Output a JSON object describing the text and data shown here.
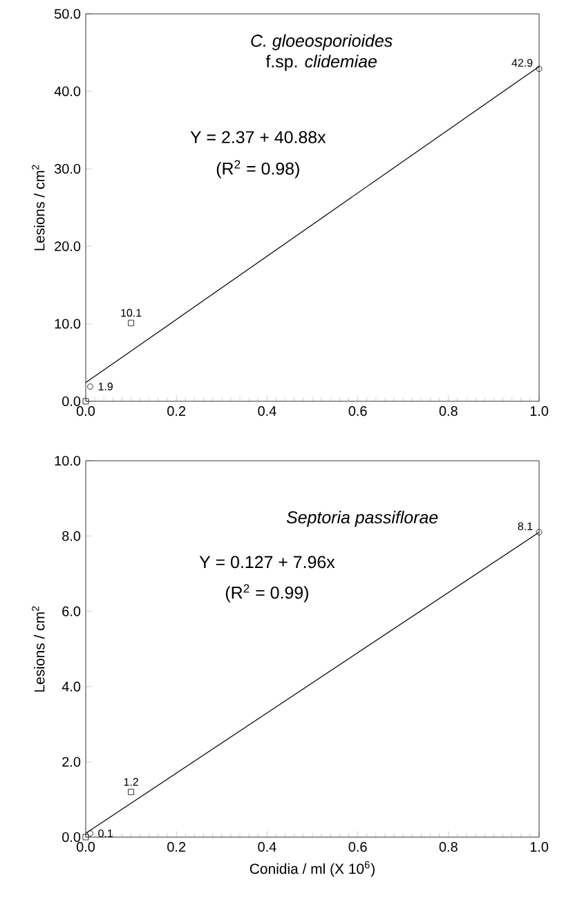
{
  "chart_data": [
    {
      "type": "scatter",
      "title": "C. gloeosporioides",
      "subtitle": "f.sp. *clidemiae*",
      "ylabel": "Lesions / cm$^{2}$",
      "annotations": [
        "Y = 2.37 + 40.88x",
        "(R$^{2}$ = 0.98)"
      ],
      "xlim": [
        0,
        1
      ],
      "ylim": [
        0,
        50
      ],
      "xticks": [
        {
          "value": 0,
          "label": "0.0"
        },
        {
          "value": 0.2,
          "label": "0.2"
        },
        {
          "value": 0.4,
          "label": "0.4"
        },
        {
          "value": 0.6,
          "label": "0.6"
        },
        {
          "value": 0.8,
          "label": "0.8"
        },
        {
          "value": 1,
          "label": "1.0"
        }
      ],
      "yticks": [
        {
          "value": 0,
          "label": "0.0"
        },
        {
          "value": 10,
          "label": "10.0"
        },
        {
          "value": 20,
          "label": "20.0"
        },
        {
          "value": 30,
          "label": "30.0"
        },
        {
          "value": 40,
          "label": "40.0"
        },
        {
          "value": 50,
          "label": "50.0"
        }
      ],
      "series": [
        {
          "type": "scatter",
          "marker": "square",
          "color": "#000000",
          "x": [
            0,
            0.1
          ],
          "values": [
            0,
            10.1
          ],
          "value_labels": [
            null,
            "10.1"
          ]
        },
        {
          "type": "scatter",
          "marker": "circle",
          "color": "#000000",
          "x": [
            0.01,
            1
          ],
          "values": [
            1.9,
            42.9
          ],
          "value_labels": [
            "1.9",
            "42.9"
          ]
        },
        {
          "type": "line",
          "marker": "none",
          "color": "#000000",
          "x": [
            0,
            1
          ],
          "values": [
            2.4,
            43.2
          ]
        }
      ]
    },
    {
      "type": "scatter",
      "title": "Septoria passiflorae",
      "xlabel": "Conidia / ml (X 10$^{6}$)",
      "ylabel": "Lesions / cm$^{2}$",
      "annotations": [
        "Y = 0.127 + 7.96x",
        "(R$^{2}$ = 0.99)"
      ],
      "xlim": [
        0,
        1
      ],
      "ylim": [
        0,
        10
      ],
      "xticks": [
        {
          "value": 0,
          "label": "0.0"
        },
        {
          "value": 0.2,
          "label": "0.2"
        },
        {
          "value": 0.4,
          "label": "0.4"
        },
        {
          "value": 0.6,
          "label": "0.6"
        },
        {
          "value": 0.8,
          "label": "0.8"
        },
        {
          "value": 1,
          "label": "1.0"
        }
      ],
      "yticks": [
        {
          "value": 0,
          "label": "0.0"
        },
        {
          "value": 2,
          "label": "2.0"
        },
        {
          "value": 4,
          "label": "4.0"
        },
        {
          "value": 6,
          "label": "6.0"
        },
        {
          "value": 8,
          "label": "8.0"
        },
        {
          "value": 10,
          "label": "10.0"
        }
      ],
      "series": [
        {
          "type": "scatter",
          "marker": "square",
          "color": "#000000",
          "x": [
            0,
            0.1
          ],
          "values": [
            0,
            1.2
          ],
          "value_labels": [
            null,
            "1.2"
          ]
        },
        {
          "type": "scatter",
          "marker": "circle",
          "color": "#000000",
          "x": [
            0.01,
            1
          ],
          "values": [
            0.1,
            8.1
          ],
          "value_labels": [
            "0.1",
            "8.1"
          ]
        },
        {
          "type": "line",
          "marker": "none",
          "color": "#000000",
          "x": [
            0,
            1
          ],
          "values": [
            0.1,
            8.1
          ]
        }
      ]
    }
  ]
}
